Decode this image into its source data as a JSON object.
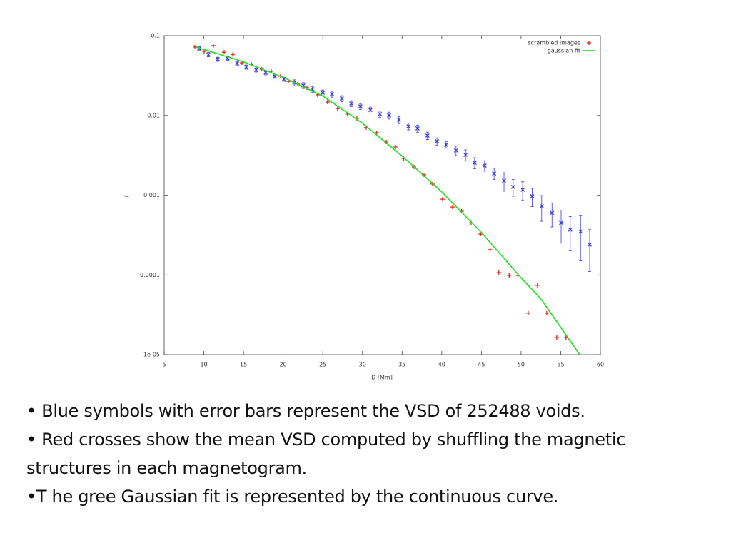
{
  "chart_data": {
    "type": "scatter",
    "xlabel": "D [Mm]",
    "ylabel": "f",
    "xlim": [
      5,
      60
    ],
    "xticks": [
      5,
      10,
      15,
      20,
      25,
      30,
      35,
      40,
      45,
      50,
      55,
      60
    ],
    "ylim": [
      1e-05,
      0.1
    ],
    "yscale": "log",
    "yticks": [
      0.1,
      0.01,
      0.001,
      0.0001,
      {
        "value": 1e-05,
        "label": "1e-05"
      }
    ],
    "legend": "upper right",
    "series": [
      {
        "name": "scrambled images",
        "color": "#e8241c",
        "marker": "plus",
        "x": [
          8.87,
          10.04,
          11.2,
          12.56,
          13.64,
          14.8,
          16.0,
          17.3,
          18.5,
          19.67,
          20.66,
          21.83,
          23.0,
          24.35,
          25.6,
          26.87,
          28.1,
          29.3,
          30.47,
          31.8,
          33.0,
          34.16,
          35.2,
          36.5,
          37.76,
          38.84,
          40.1,
          41.36,
          42.5,
          43.7,
          44.9,
          46.1,
          47.2,
          48.5,
          49.6,
          50.9,
          52.07,
          53.24,
          54.5,
          55.67
        ],
        "values": [
          0.072,
          0.0636,
          0.075,
          0.062,
          0.058,
          0.0457,
          0.0438,
          0.038,
          0.0357,
          0.031,
          0.0267,
          0.0247,
          0.0222,
          0.0181,
          0.0147,
          0.0122,
          0.0104,
          0.00917,
          0.00702,
          0.00607,
          0.00464,
          0.00402,
          0.00289,
          0.00226,
          0.0018,
          0.00138,
          0.00089,
          0.00071,
          0.00063,
          0.00045,
          0.000325,
          0.000207,
          0.000107,
          9.84e-05,
          9.84e-05,
          3.31e-05,
          7.41e-05,
          3.31e-05,
          1.64e-05,
          1.64e-05
        ]
      },
      {
        "color": "#3a3ad8",
        "marker": "cross",
        "x": [
          9.41,
          10.58,
          11.75,
          13.0,
          14.2,
          15.35,
          16.6,
          17.8,
          18.95,
          20.1,
          21.4,
          22.55,
          23.7,
          25.0,
          26.15,
          27.4,
          28.6,
          29.75,
          31.0,
          32.2,
          33.35,
          34.6,
          35.8,
          36.95,
          38.2,
          39.4,
          40.55,
          41.8,
          43.0,
          44.15,
          45.4,
          46.6,
          47.85,
          49.0,
          50.2,
          51.4,
          52.6,
          53.9,
          55.05,
          56.2,
          57.5,
          58.65
        ],
        "values": [
          0.069,
          0.058,
          0.0507,
          0.0518,
          0.0448,
          0.0404,
          0.0372,
          0.0343,
          0.031,
          0.0284,
          0.0257,
          0.0237,
          0.0213,
          0.0192,
          0.0185,
          0.0163,
          0.0141,
          0.013,
          0.0117,
          0.0104,
          0.01,
          0.0088,
          0.0073,
          0.00687,
          0.00558,
          0.00474,
          0.00428,
          0.00363,
          0.0032,
          0.00255,
          0.00235,
          0.00187,
          0.00152,
          0.00127,
          0.00117,
          0.00097,
          0.00073,
          0.0006,
          0.00045,
          0.00037,
          0.00035,
          0.00024
        ],
        "errors": [
          0.0041,
          0.0035,
          0.003,
          0.0031,
          0.0027,
          0.0024,
          0.0022,
          0.0021,
          0.0019,
          0.0017,
          0.0022,
          0.002,
          0.0018,
          0.0016,
          0.0016,
          0.0014,
          0.0012,
          0.0011,
          0.001,
          0.0009,
          0.001,
          0.0009,
          0.0007,
          0.0007,
          0.0006,
          0.0005,
          0.0004,
          0.0005,
          0.0005,
          0.0004,
          0.00035,
          0.0003,
          0.0004,
          0.0003,
          0.0003,
          0.00025,
          0.00026,
          0.0002,
          0.0002,
          0.00017,
          0.0002,
          0.00013
        ]
      },
      {
        "name": "gaussian fit",
        "color": "#22dd22",
        "marker": "line",
        "x": [
          9,
          15,
          20,
          25,
          30,
          35,
          40,
          45,
          50,
          52.5,
          55,
          57.4
        ],
        "values": [
          0.072,
          0.047,
          0.03,
          0.0175,
          0.008,
          0.0031,
          0.0011,
          0.00034,
          9.2e-05,
          5e-05,
          2.2e-05,
          1e-05
        ]
      }
    ]
  },
  "bullets": [
    "• Blue symbols with error bars represent the VSD of 252488 voids.",
    "• Red crosses show the mean VSD computed by shuffling the magnetic structures in each magnetogram.",
    "•T he gree Gaussian fit is represented by the continuous curve."
  ]
}
